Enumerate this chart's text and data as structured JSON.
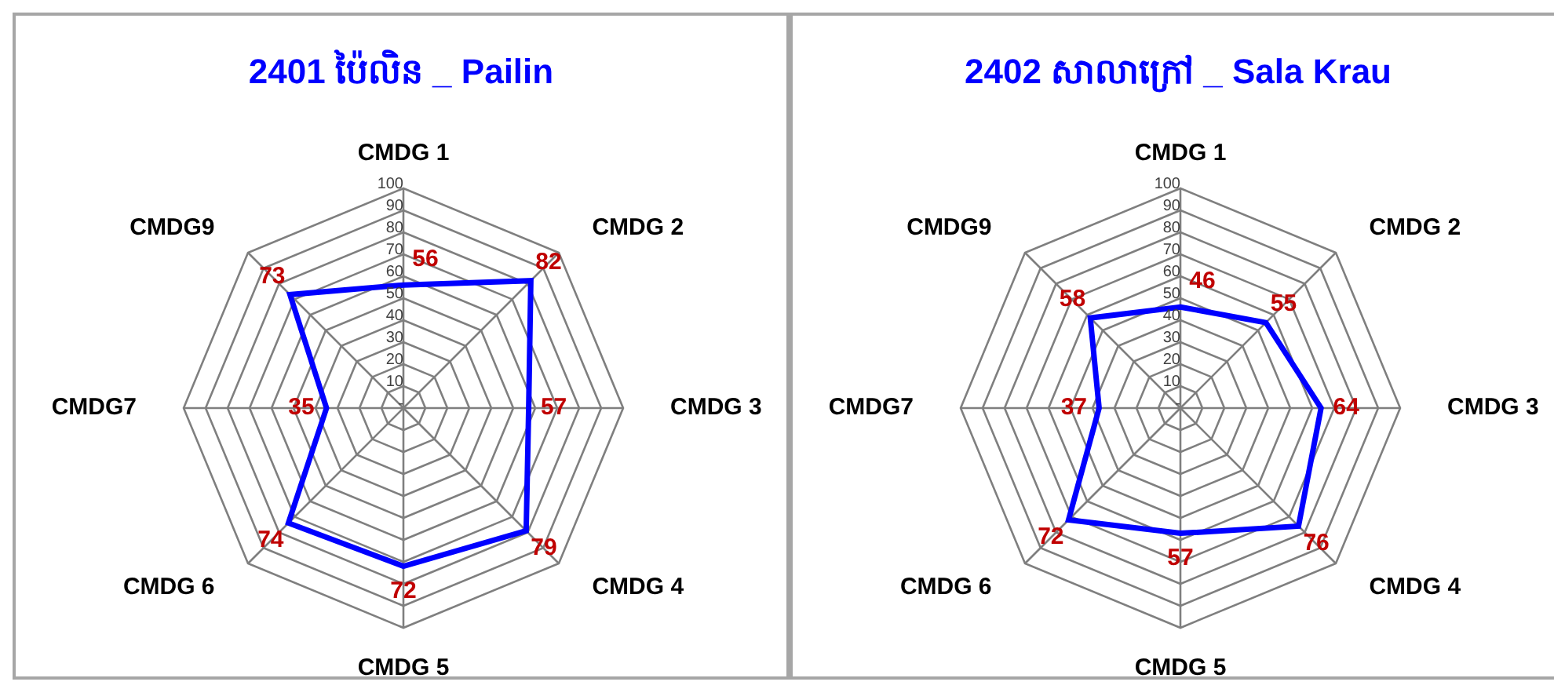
{
  "chart_data": [
    {
      "type": "radar",
      "title": "2401 ប៉ៃលិន _ Pailin",
      "categories": [
        "CMDG 1",
        "CMDG 2",
        "CMDG 3",
        "CMDG 4",
        "CMDG 5",
        "CMDG 6",
        "CMDG7",
        "CMDG9"
      ],
      "series": [
        {
          "color": "#0000ff",
          "values": [
            56,
            82,
            57,
            79,
            72,
            74,
            35,
            73
          ]
        }
      ],
      "ylim": [
        0,
        100
      ],
      "yticks": [
        {
          "value": 0,
          "label": "-"
        },
        10,
        20,
        30,
        40,
        50,
        60,
        70,
        80,
        90,
        100
      ],
      "data_labels": true,
      "grid": true,
      "legend": false
    },
    {
      "type": "radar",
      "title": "2402 សាលាក្រៅ _ Sala Krau",
      "categories": [
        "CMDG 1",
        "CMDG 2",
        "CMDG 3",
        "CMDG 4",
        "CMDG 5",
        "CMDG 6",
        "CMDG7",
        "CMDG9"
      ],
      "series": [
        {
          "color": "#0000ff",
          "values": [
            46,
            55,
            64,
            76,
            57,
            72,
            37,
            58
          ]
        }
      ],
      "ylim": [
        0,
        100
      ],
      "yticks": [
        {
          "value": 0,
          "label": "-"
        },
        10,
        20,
        30,
        40,
        50,
        60,
        70,
        80,
        90,
        100
      ],
      "data_labels": true,
      "grid": true,
      "legend": false
    }
  ]
}
